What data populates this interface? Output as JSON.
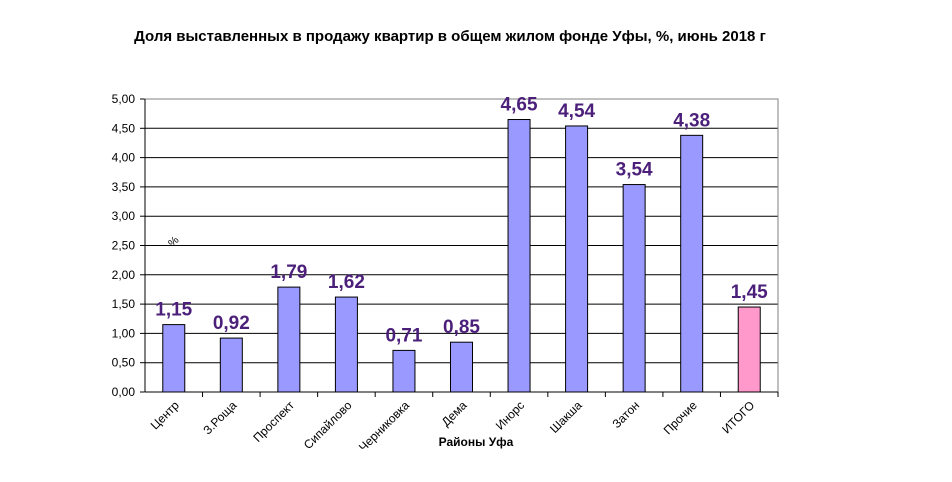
{
  "chart_data": {
    "type": "bar",
    "title": "Доля выставленных в продажу квартир в общем жилом фонде Уфы, %, июнь 2018 г",
    "xlabel": "Районы Уфа",
    "ylabel": "%",
    "categories": [
      "Центр",
      "З.Роща",
      "Проспект",
      "Сипайлово",
      "Черниковка",
      "Дема",
      "Инорс",
      "Шакша",
      "Затон",
      "Прочие",
      "ИТОГО"
    ],
    "values": [
      1.15,
      0.92,
      1.79,
      1.62,
      0.71,
      0.85,
      4.65,
      4.54,
      3.54,
      4.38,
      1.45
    ],
    "data_labels": [
      "1,15",
      "0,92",
      "1,79",
      "1,62",
      "0,71",
      "0,85",
      "4,65",
      "4,54",
      "3,54",
      "4,38",
      "1,45"
    ],
    "ylim": [
      0,
      5
    ],
    "ytick_labels": [
      "0,00",
      "0,50",
      "1,00",
      "1,50",
      "2,00",
      "2,50",
      "3,00",
      "3,50",
      "4,00",
      "4,50",
      "5,00"
    ],
    "grid": true,
    "legend": "none",
    "colors": {
      "bar": "#9999FF",
      "bar_highlight": "#FF99CC",
      "data_label": "#4B1F7A",
      "grid": "#000000"
    },
    "highlight_index": 10
  }
}
